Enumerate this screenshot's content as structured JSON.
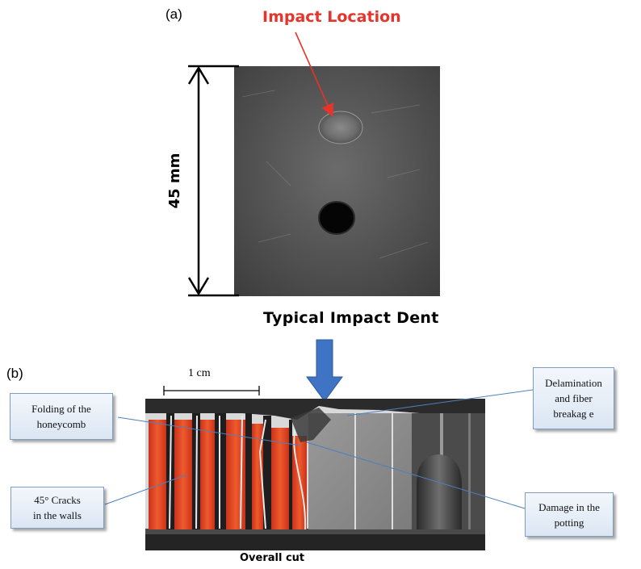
{
  "panel_a": {
    "label": "(a)",
    "impact_label": "Impact Location",
    "dimension_label": "45 mm",
    "caption": "Typical Impact Dent"
  },
  "panel_b": {
    "label": "(b)",
    "scale_label": "1 cm",
    "caption": "Overall cut",
    "callouts": {
      "folding": "Folding of the\nhoneycomb",
      "cracks": "45° Cracks\nin the walls",
      "delamination": "Delamination\nand fiber\nbreakag e",
      "potting": "Damage in the\npotting"
    }
  },
  "colors": {
    "impact_red": "#e8332a",
    "arrow_blue": "#3f74c4",
    "callout_border": "#7f9dc2",
    "leader_line": "#4f81bd"
  }
}
